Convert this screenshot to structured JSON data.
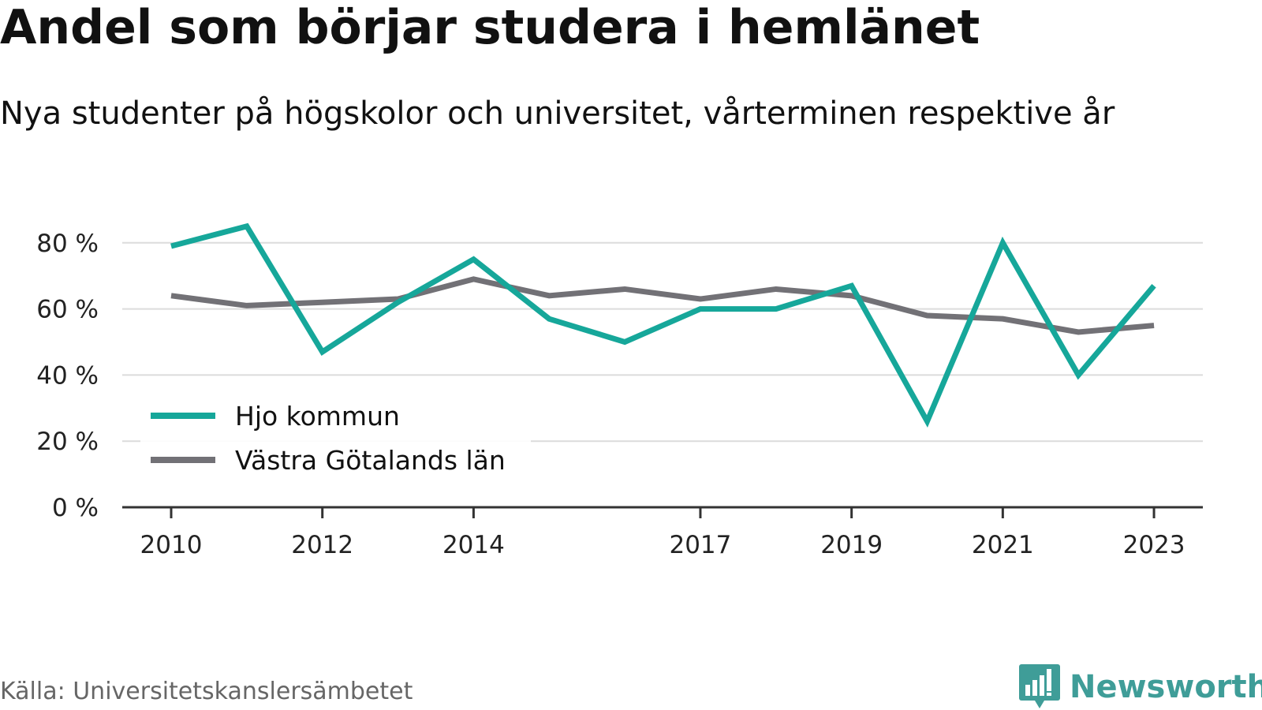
{
  "header": {
    "title": "Andel som börjar studera i hemlänet",
    "subtitle": "Nya studenter på högskolor och universitet, vårterminen respektive år"
  },
  "footer": {
    "source": "Källa: Universitetskanslersämbetet",
    "brand": "Newsworthy",
    "brand_icon": "bar-chart-speech-bubble-icon",
    "brand_color": "#3f9d98"
  },
  "chart_data": {
    "type": "line",
    "x": [
      2010,
      2011,
      2012,
      2013,
      2014,
      2015,
      2016,
      2017,
      2018,
      2019,
      2020,
      2021,
      2022,
      2023
    ],
    "x_tick_labels": [
      "2010",
      "2012",
      "2014",
      "2017",
      "2019",
      "2021",
      "2023"
    ],
    "y_ticks": [
      0,
      20,
      40,
      60,
      80
    ],
    "y_tick_labels": [
      "0 %",
      "20 %",
      "40 %",
      "60 %",
      "80 %"
    ],
    "ylim": [
      0,
      85
    ],
    "grid": true,
    "legend_position": "bottom-left",
    "series": [
      {
        "name": "Hjo kommun",
        "color": "#16a79a",
        "values": [
          79,
          85,
          47,
          62,
          75,
          57,
          50,
          60,
          60,
          67,
          26,
          80,
          40,
          67
        ]
      },
      {
        "name": "Västra Götalands län",
        "color": "#727176",
        "values": [
          64,
          61,
          62,
          63,
          69,
          64,
          66,
          63,
          66,
          64,
          58,
          57,
          53,
          55
        ]
      }
    ]
  }
}
